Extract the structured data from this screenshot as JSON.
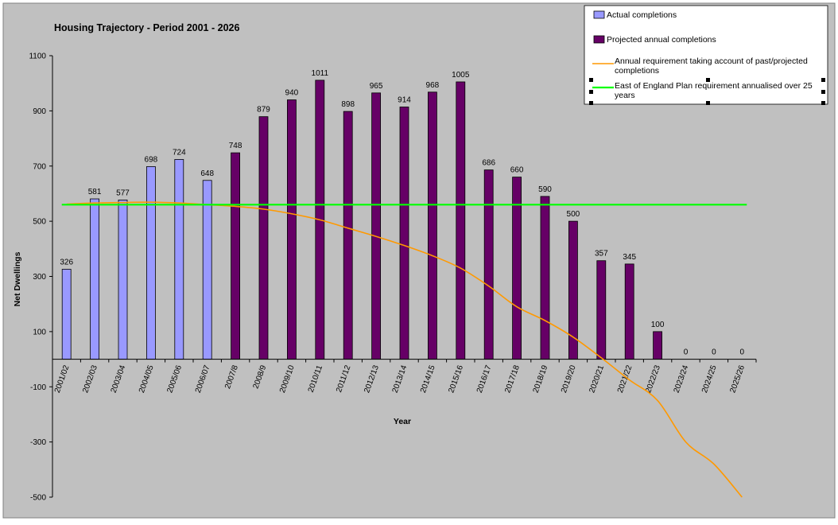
{
  "chart_data": {
    "type": "bar",
    "title": "Housing Trajectory - Period 2001 - 2026",
    "xlabel": "Year",
    "ylabel": "Net Dwellings",
    "ylim": [
      -500,
      1100
    ],
    "yticks": [
      1100,
      900,
      700,
      500,
      300,
      100,
      -100,
      -300,
      -500
    ],
    "grid": false,
    "legend_position": "top-right",
    "categories": [
      "2001/02",
      "2002/03",
      "2003/04",
      "2004/05",
      "2005/06",
      "2006/07",
      "2007/8",
      "2008/9",
      "2009/10",
      "2010/11",
      "2011/12",
      "2012/13",
      "2013/14",
      "2014/15",
      "2015/16",
      "2016/17",
      "2017/18",
      "2018/19",
      "2019/20",
      "2020/21",
      "2021/22",
      "2022/23",
      "2023/24",
      "2024/25",
      "2025/26"
    ],
    "series": [
      {
        "name": "Actual completions",
        "kind": "bar",
        "color": "#9999ff",
        "values": [
          326,
          581,
          577,
          698,
          724,
          648,
          null,
          null,
          null,
          null,
          null,
          null,
          null,
          null,
          null,
          null,
          null,
          null,
          null,
          null,
          null,
          null,
          null,
          null,
          null
        ]
      },
      {
        "name": "Projected annual completions",
        "kind": "bar",
        "color": "#660066",
        "values": [
          null,
          null,
          null,
          null,
          null,
          null,
          748,
          879,
          940,
          1011,
          898,
          965,
          914,
          968,
          1005,
          686,
          660,
          590,
          500,
          357,
          345,
          100,
          0,
          0,
          0
        ]
      },
      {
        "name": "Annual requirement taking account of past/projected completions",
        "kind": "line",
        "color": "#ff9900",
        "values": [
          562,
          566,
          568,
          569,
          566,
          560,
          554,
          544,
          527,
          505,
          475,
          445,
          412,
          375,
          330,
          265,
          190,
          140,
          80,
          5,
          -75,
          -150,
          -300,
          -380,
          -500
        ]
      },
      {
        "name": "East of England Plan requirement annualised over 25 years",
        "kind": "line",
        "color": "#00ff00",
        "values": [
          560,
          560,
          560,
          560,
          560,
          560,
          560,
          560,
          560,
          560,
          560,
          560,
          560,
          560,
          560,
          560,
          560,
          560,
          560,
          560,
          560,
          560,
          560,
          560,
          560
        ]
      }
    ],
    "data_labels": [
      "326",
      "581",
      "577",
      "698",
      "724",
      "648",
      "748",
      "879",
      "940",
      "1011",
      "898",
      "965",
      "914",
      "968",
      "1005",
      "686",
      "660",
      "590",
      "500",
      "357",
      "345",
      "100",
      "0",
      "0",
      "0"
    ],
    "colors": {
      "background": "#c0c0c0",
      "frame": "#808080"
    }
  }
}
